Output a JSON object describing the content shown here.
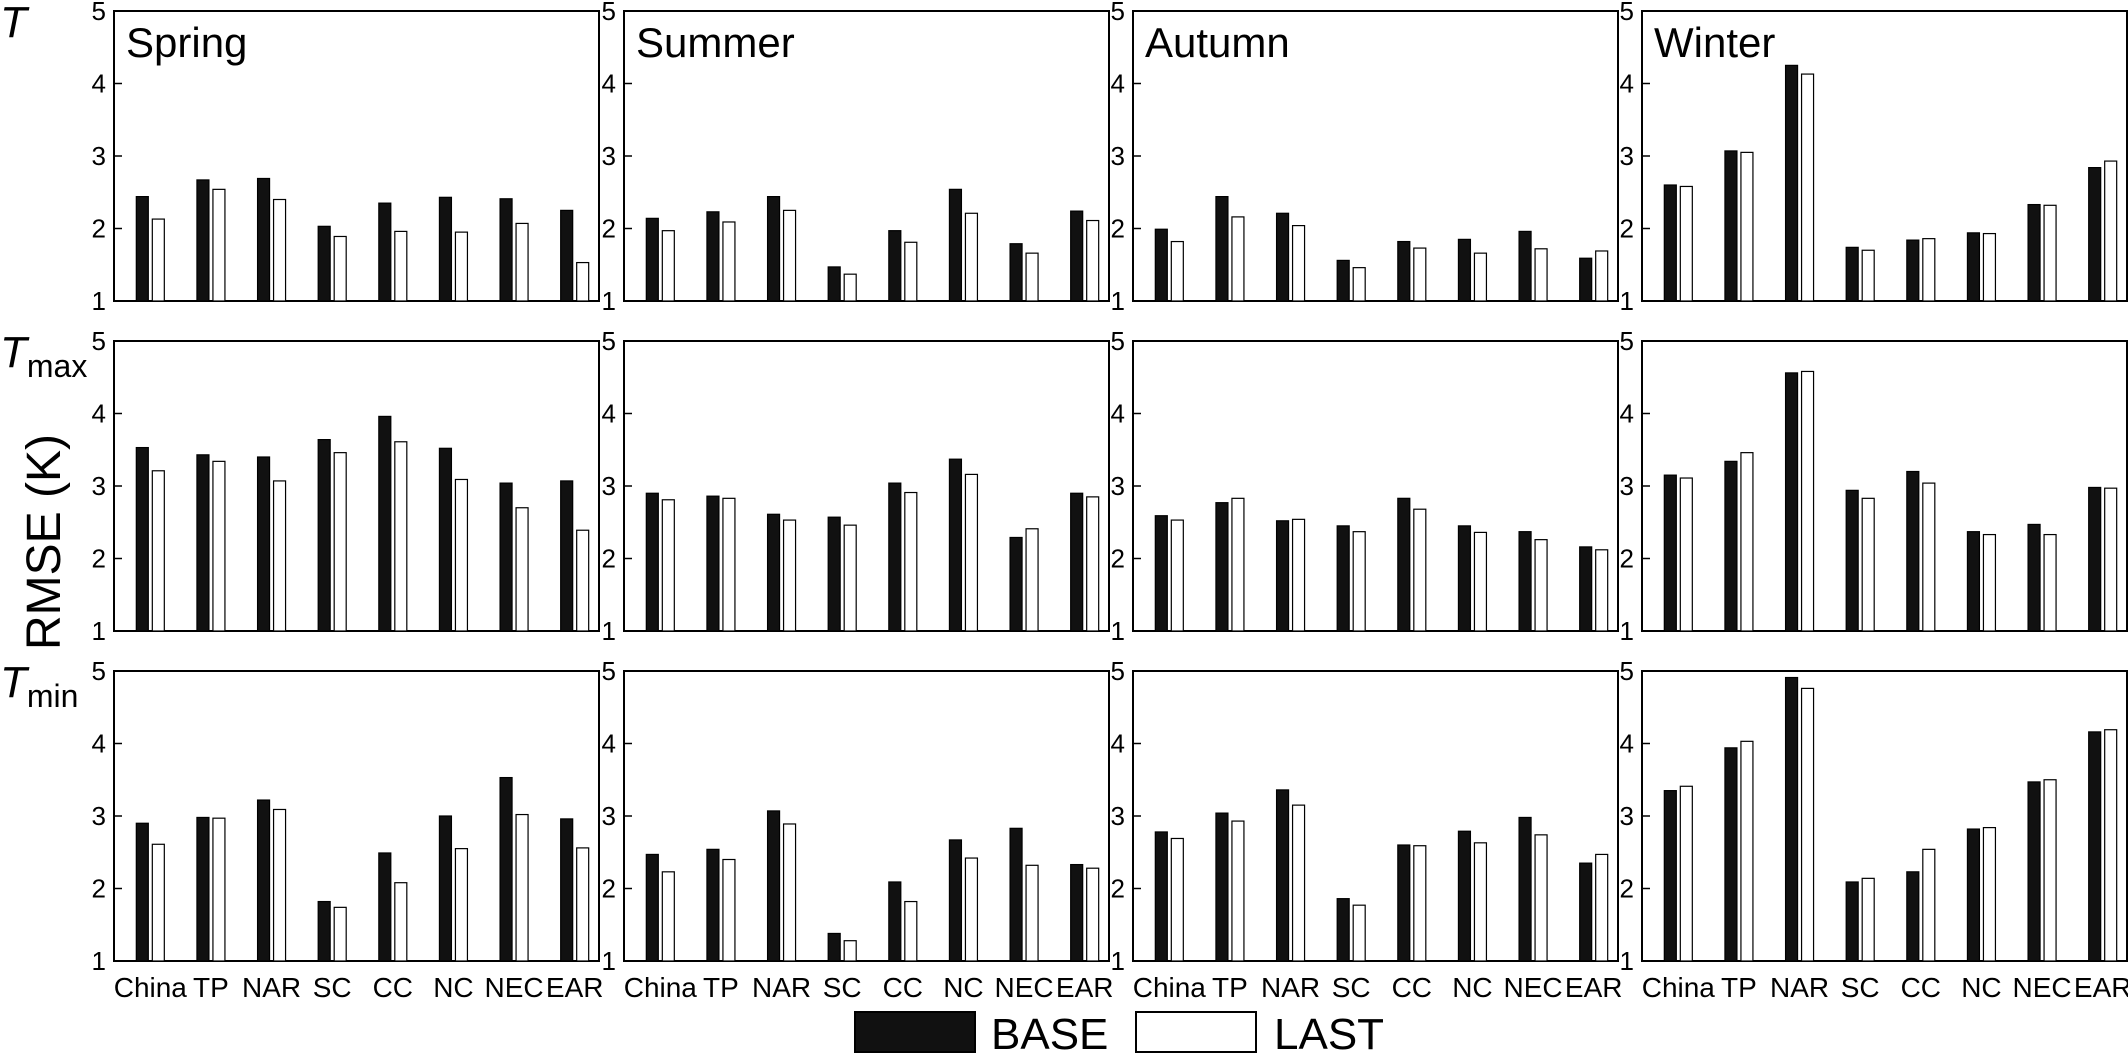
{
  "chart_data": {
    "type": "bar",
    "ylabel": "RMSE (K)",
    "ylim": [
      1,
      5
    ],
    "yticks": [
      1,
      2,
      3,
      4,
      5
    ],
    "grid": false,
    "legend_position": "bottom-center",
    "categories": [
      "China",
      "TP",
      "NAR",
      "SC",
      "CC",
      "NC",
      "NEC",
      "EAR"
    ],
    "seasons": [
      "Spring",
      "Summer",
      "Autumn",
      "Winter"
    ],
    "legend": [
      {
        "name": "BASE",
        "color": "#111111"
      },
      {
        "name": "LAST",
        "color": "#ffffff"
      }
    ],
    "rows": [
      {
        "label": "T",
        "subscript": "",
        "panels": [
          {
            "season": "Spring",
            "BASE": [
              2.44,
              2.67,
              2.69,
              2.03,
              2.35,
              2.43,
              2.41,
              2.25
            ],
            "LAST": [
              2.13,
              2.54,
              2.4,
              1.89,
              1.96,
              1.95,
              2.07,
              1.53
            ]
          },
          {
            "season": "Summer",
            "BASE": [
              2.14,
              2.23,
              2.44,
              1.47,
              1.97,
              2.54,
              1.79,
              2.24
            ],
            "LAST": [
              1.97,
              2.09,
              2.25,
              1.37,
              1.81,
              2.21,
              1.66,
              2.11
            ]
          },
          {
            "season": "Autumn",
            "BASE": [
              1.99,
              2.44,
              2.21,
              1.56,
              1.82,
              1.85,
              1.96,
              1.59
            ],
            "LAST": [
              1.82,
              2.16,
              2.04,
              1.46,
              1.73,
              1.66,
              1.72,
              1.69
            ]
          },
          {
            "season": "Winter",
            "BASE": [
              2.6,
              3.07,
              4.25,
              1.74,
              1.84,
              1.94,
              2.33,
              2.84
            ],
            "LAST": [
              2.58,
              3.05,
              4.13,
              1.7,
              1.86,
              1.93,
              2.32,
              2.93
            ]
          }
        ]
      },
      {
        "label": "T",
        "subscript": "max",
        "panels": [
          {
            "season": "Spring",
            "BASE": [
              3.53,
              3.43,
              3.4,
              3.64,
              3.96,
              3.52,
              3.04,
              3.07
            ],
            "LAST": [
              3.21,
              3.34,
              3.07,
              3.46,
              3.61,
              3.09,
              2.7,
              2.39
            ]
          },
          {
            "season": "Summer",
            "BASE": [
              2.9,
              2.86,
              2.61,
              2.57,
              3.04,
              3.37,
              2.29,
              2.9
            ],
            "LAST": [
              2.81,
              2.83,
              2.53,
              2.46,
              2.91,
              3.16,
              2.41,
              2.85
            ]
          },
          {
            "season": "Autumn",
            "BASE": [
              2.59,
              2.77,
              2.52,
              2.45,
              2.83,
              2.45,
              2.37,
              2.16
            ],
            "LAST": [
              2.53,
              2.83,
              2.54,
              2.37,
              2.68,
              2.36,
              2.26,
              2.12
            ]
          },
          {
            "season": "Winter",
            "BASE": [
              3.15,
              3.34,
              4.56,
              2.94,
              3.2,
              2.37,
              2.47,
              2.98
            ],
            "LAST": [
              3.11,
              3.46,
              4.58,
              2.83,
              3.04,
              2.33,
              2.33,
              2.97
            ]
          }
        ]
      },
      {
        "label": "T",
        "subscript": "min",
        "panels": [
          {
            "season": "Spring",
            "BASE": [
              2.9,
              2.98,
              3.22,
              1.82,
              2.49,
              3.0,
              3.53,
              2.96
            ],
            "LAST": [
              2.61,
              2.97,
              3.09,
              1.74,
              2.08,
              2.55,
              3.02,
              2.56
            ]
          },
          {
            "season": "Summer",
            "BASE": [
              2.47,
              2.54,
              3.07,
              1.38,
              2.09,
              2.67,
              2.83,
              2.33
            ],
            "LAST": [
              2.23,
              2.4,
              2.89,
              1.28,
              1.82,
              2.42,
              2.32,
              2.28
            ]
          },
          {
            "season": "Autumn",
            "BASE": [
              2.78,
              3.04,
              3.36,
              1.86,
              2.6,
              2.79,
              2.98,
              2.35
            ],
            "LAST": [
              2.69,
              2.93,
              3.15,
              1.77,
              2.59,
              2.63,
              2.74,
              2.47
            ]
          },
          {
            "season": "Winter",
            "BASE": [
              3.35,
              3.94,
              4.91,
              2.09,
              2.23,
              2.82,
              3.47,
              4.16
            ],
            "LAST": [
              3.41,
              4.03,
              4.76,
              2.14,
              2.54,
              2.84,
              3.5,
              4.19
            ]
          }
        ]
      }
    ]
  }
}
